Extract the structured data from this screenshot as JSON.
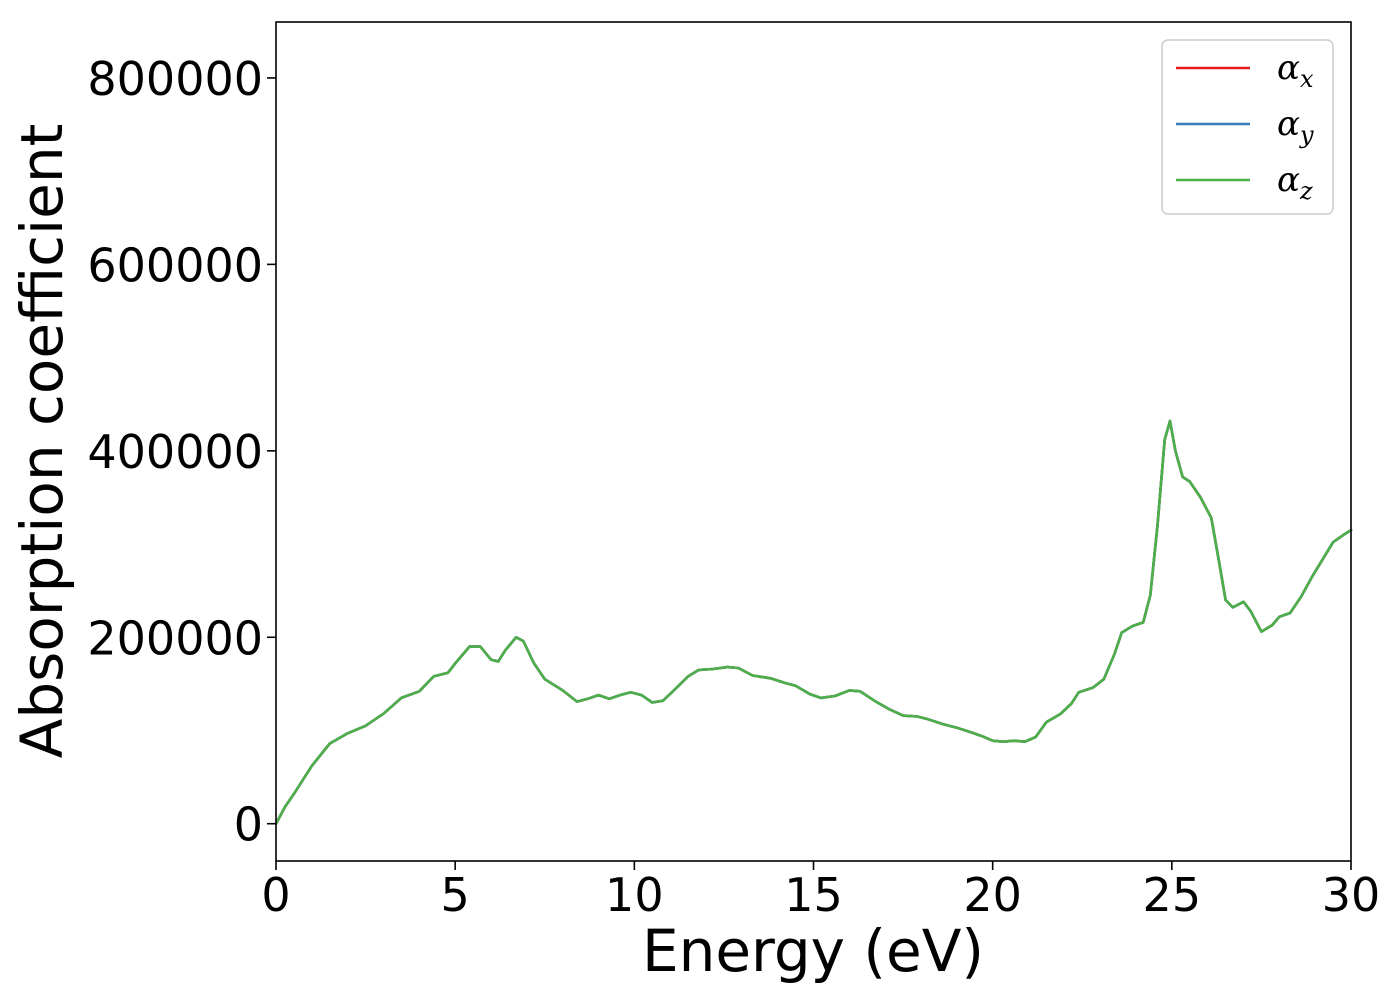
{
  "chart_data": {
    "type": "line",
    "title": "",
    "xlabel": "Energy (eV)",
    "ylabel": "Absorption coefficient",
    "xlim": [
      0,
      30
    ],
    "ylim": [
      -40000,
      860000
    ],
    "xticks": [
      0,
      5,
      10,
      15,
      20,
      25,
      30
    ],
    "xtick_labels": [
      "0",
      "5",
      "10",
      "15",
      "20",
      "25",
      "30"
    ],
    "yticks": [
      0,
      200000,
      400000,
      600000,
      800000
    ],
    "ytick_labels": [
      "0",
      "200000",
      "400000",
      "600000",
      "800000"
    ],
    "grid": false,
    "legend": {
      "placement": "top-right"
    },
    "x": [
      0,
      0.25,
      0.5,
      1.0,
      1.5,
      2.0,
      2.5,
      3.0,
      3.5,
      4.0,
      4.4,
      4.8,
      5.0,
      5.4,
      5.7,
      6.0,
      6.2,
      6.4,
      6.7,
      6.9,
      7.2,
      7.5,
      8.0,
      8.4,
      8.7,
      9.0,
      9.3,
      9.6,
      9.9,
      10.2,
      10.5,
      10.8,
      11.1,
      11.5,
      11.8,
      12.2,
      12.6,
      12.9,
      13.3,
      13.8,
      14.2,
      14.5,
      14.9,
      15.2,
      15.6,
      16.0,
      16.3,
      16.7,
      17.1,
      17.5,
      17.9,
      18.2,
      18.6,
      19.0,
      19.4,
      19.7,
      20.0,
      20.3,
      20.6,
      20.9,
      21.2,
      21.5,
      21.9,
      22.2,
      22.4,
      22.8,
      23.1,
      23.4,
      23.6,
      23.9,
      24.2,
      24.4,
      24.6,
      24.8,
      24.95,
      25.1,
      25.3,
      25.5,
      25.8,
      26.1,
      26.3,
      26.5,
      26.7,
      27.0,
      27.2,
      27.5,
      27.8,
      28.0,
      28.3,
      28.6,
      28.9,
      29.2,
      29.5,
      29.8,
      30.0
    ],
    "series": [
      {
        "name": "α",
        "name_sub": "x",
        "color": "#e41a1c",
        "values": [
          0,
          18000,
          32000,
          62000,
          86000,
          97000,
          105000,
          118000,
          135000,
          142000,
          158000,
          162000,
          172000,
          190000,
          190000,
          176000,
          174000,
          186000,
          200000,
          196000,
          172000,
          155000,
          143000,
          131000,
          134000,
          138000,
          134000,
          138000,
          141000,
          138000,
          130000,
          132000,
          143000,
          158000,
          165000,
          166000,
          168000,
          167000,
          159000,
          156000,
          151000,
          148000,
          139000,
          135000,
          137000,
          143000,
          142000,
          132000,
          123000,
          116000,
          115000,
          112000,
          107000,
          103000,
          98000,
          94000,
          89000,
          88000,
          89000,
          88000,
          93000,
          109000,
          118000,
          129000,
          141000,
          146000,
          155000,
          182000,
          205000,
          212000,
          216000,
          245000,
          320000,
          412000,
          432000,
          400000,
          372000,
          367000,
          350000,
          328000,
          285000,
          240000,
          232000,
          238000,
          228000,
          206000,
          213000,
          222000,
          226000,
          243000,
          264000,
          283000,
          302000,
          310000,
          315000
        ]
      },
      {
        "name": "α",
        "name_sub": "y",
        "color": "#377eb8",
        "values": [
          0,
          18000,
          32000,
          62000,
          86000,
          97000,
          105000,
          118000,
          135000,
          142000,
          158000,
          162000,
          172000,
          190000,
          190000,
          176000,
          174000,
          186000,
          200000,
          196000,
          172000,
          155000,
          143000,
          131000,
          134000,
          138000,
          134000,
          138000,
          141000,
          138000,
          130000,
          132000,
          143000,
          158000,
          165000,
          166000,
          168000,
          167000,
          159000,
          156000,
          151000,
          148000,
          139000,
          135000,
          137000,
          143000,
          142000,
          132000,
          123000,
          116000,
          115000,
          112000,
          107000,
          103000,
          98000,
          94000,
          89000,
          88000,
          89000,
          88000,
          93000,
          109000,
          118000,
          129000,
          141000,
          146000,
          155000,
          182000,
          205000,
          212000,
          216000,
          245000,
          320000,
          412000,
          432000,
          400000,
          372000,
          367000,
          350000,
          328000,
          285000,
          240000,
          232000,
          238000,
          228000,
          206000,
          213000,
          222000,
          226000,
          243000,
          264000,
          283000,
          302000,
          310000,
          315000
        ]
      },
      {
        "name": "α",
        "name_sub": "z",
        "color": "#4daf4a",
        "values": [
          0,
          18000,
          32000,
          62000,
          86000,
          97000,
          105000,
          118000,
          135000,
          142000,
          158000,
          162000,
          172000,
          190000,
          190000,
          176000,
          174000,
          186000,
          200000,
          196000,
          172000,
          155000,
          143000,
          131000,
          134000,
          138000,
          134000,
          138000,
          141000,
          138000,
          130000,
          132000,
          143000,
          158000,
          165000,
          166000,
          168000,
          167000,
          159000,
          156000,
          151000,
          148000,
          139000,
          135000,
          137000,
          143000,
          142000,
          132000,
          123000,
          116000,
          115000,
          112000,
          107000,
          103000,
          98000,
          94000,
          89000,
          88000,
          89000,
          88000,
          93000,
          109000,
          118000,
          129000,
          141000,
          146000,
          155000,
          182000,
          205000,
          212000,
          216000,
          245000,
          320000,
          412000,
          432000,
          400000,
          372000,
          367000,
          350000,
          328000,
          285000,
          240000,
          232000,
          238000,
          228000,
          206000,
          213000,
          222000,
          226000,
          243000,
          264000,
          283000,
          302000,
          310000,
          315000
        ]
      }
    ]
  }
}
